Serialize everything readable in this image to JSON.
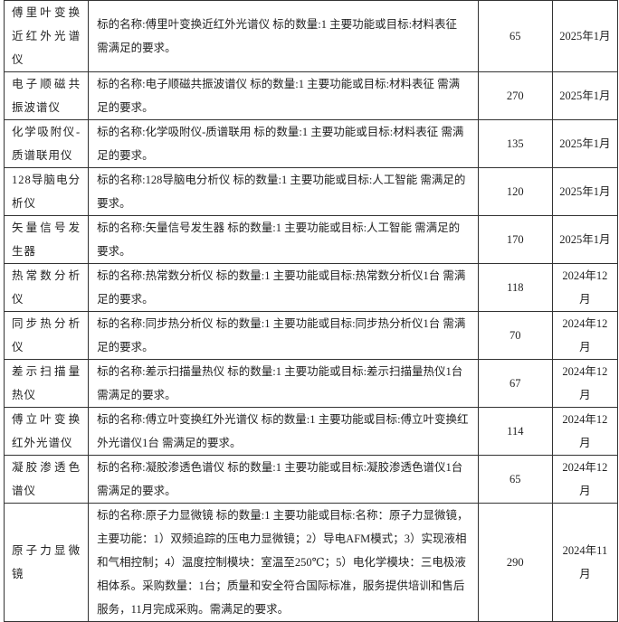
{
  "table": {
    "rows": [
      {
        "name": "傅里叶变换近红外光谱仪",
        "description": "标的名称:傅里叶变换近红外光谱仪 标的数量:1 主要功能或目标:材料表征 需满足的要求。",
        "quantity": "65",
        "date": "2025年1月"
      },
      {
        "name": "电子顺磁共振波谱仪",
        "description": "标的名称:电子顺磁共振波谱仪 标的数量:1 主要功能或目标:材料表征 需满足的要求。",
        "quantity": "270",
        "date": "2025年1月"
      },
      {
        "name": "化学吸附仪-质谱联用仪",
        "description": "标的名称:化学吸附仪-质谱联用 标的数量:1 主要功能或目标:材料表征 需满足的要求。",
        "quantity": "135",
        "date": "2025年1月"
      },
      {
        "name": "128导脑电分析仪",
        "description": "标的名称:128导脑电分析仪 标的数量:1 主要功能或目标:人工智能 需满足的要求。",
        "quantity": "120",
        "date": "2025年1月"
      },
      {
        "name": "矢量信号发生器",
        "description": "标的名称:矢量信号发生器 标的数量:1 主要功能或目标:人工智能 需满足的要求。",
        "quantity": "170",
        "date": "2025年1月"
      },
      {
        "name": "热常数分析仪",
        "description": "标的名称:热常数分析仪 标的数量:1 主要功能或目标:热常数分析仪1台 需满足的要求。",
        "quantity": "118",
        "date": "2024年12月"
      },
      {
        "name": "同步热分析仪",
        "description": "标的名称:同步热分析仪 标的数量:1 主要功能或目标:同步热分析仪1台 需满足的要求。",
        "quantity": "70",
        "date": "2024年12月"
      },
      {
        "name": "差示扫描量热仪",
        "description": "标的名称:差示扫描量热仪 标的数量:1 主要功能或目标:差示扫描量热仪1台 需满足的要求。",
        "quantity": "67",
        "date": "2024年12月"
      },
      {
        "name": "傅立叶变换红外光谱仪",
        "description": "标的名称:傅立叶变换红外光谱仪 标的数量:1 主要功能或目标:傅立叶变换红外光谱仪1台 需满足的要求。",
        "quantity": "114",
        "date": "2024年12月"
      },
      {
        "name": "凝胶渗透色谱仪",
        "description": "标的名称:凝胶渗透色谱仪 标的数量:1 主要功能或目标:凝胶渗透色谱仪1台 需满足的要求。",
        "quantity": "65",
        "date": "2024年12月"
      },
      {
        "name": "原子力显微镜",
        "description": "标的名称:原子力显微镜 标的数量:1 主要功能或目标:名称：原子力显微镜，主要功能：1）双频追踪的压电力显微镜；2）导电AFM模式；3）实现液相和气相控制；4）温度控制模块：室温至250℃；5）电化学模块：三电极液相体系。采购数量：1台；质量和安全符合国际标准，服务提供培训和售后服务，11月完成采购。需满足的要求。",
        "quantity": "290",
        "date": "2024年11月"
      }
    ]
  }
}
